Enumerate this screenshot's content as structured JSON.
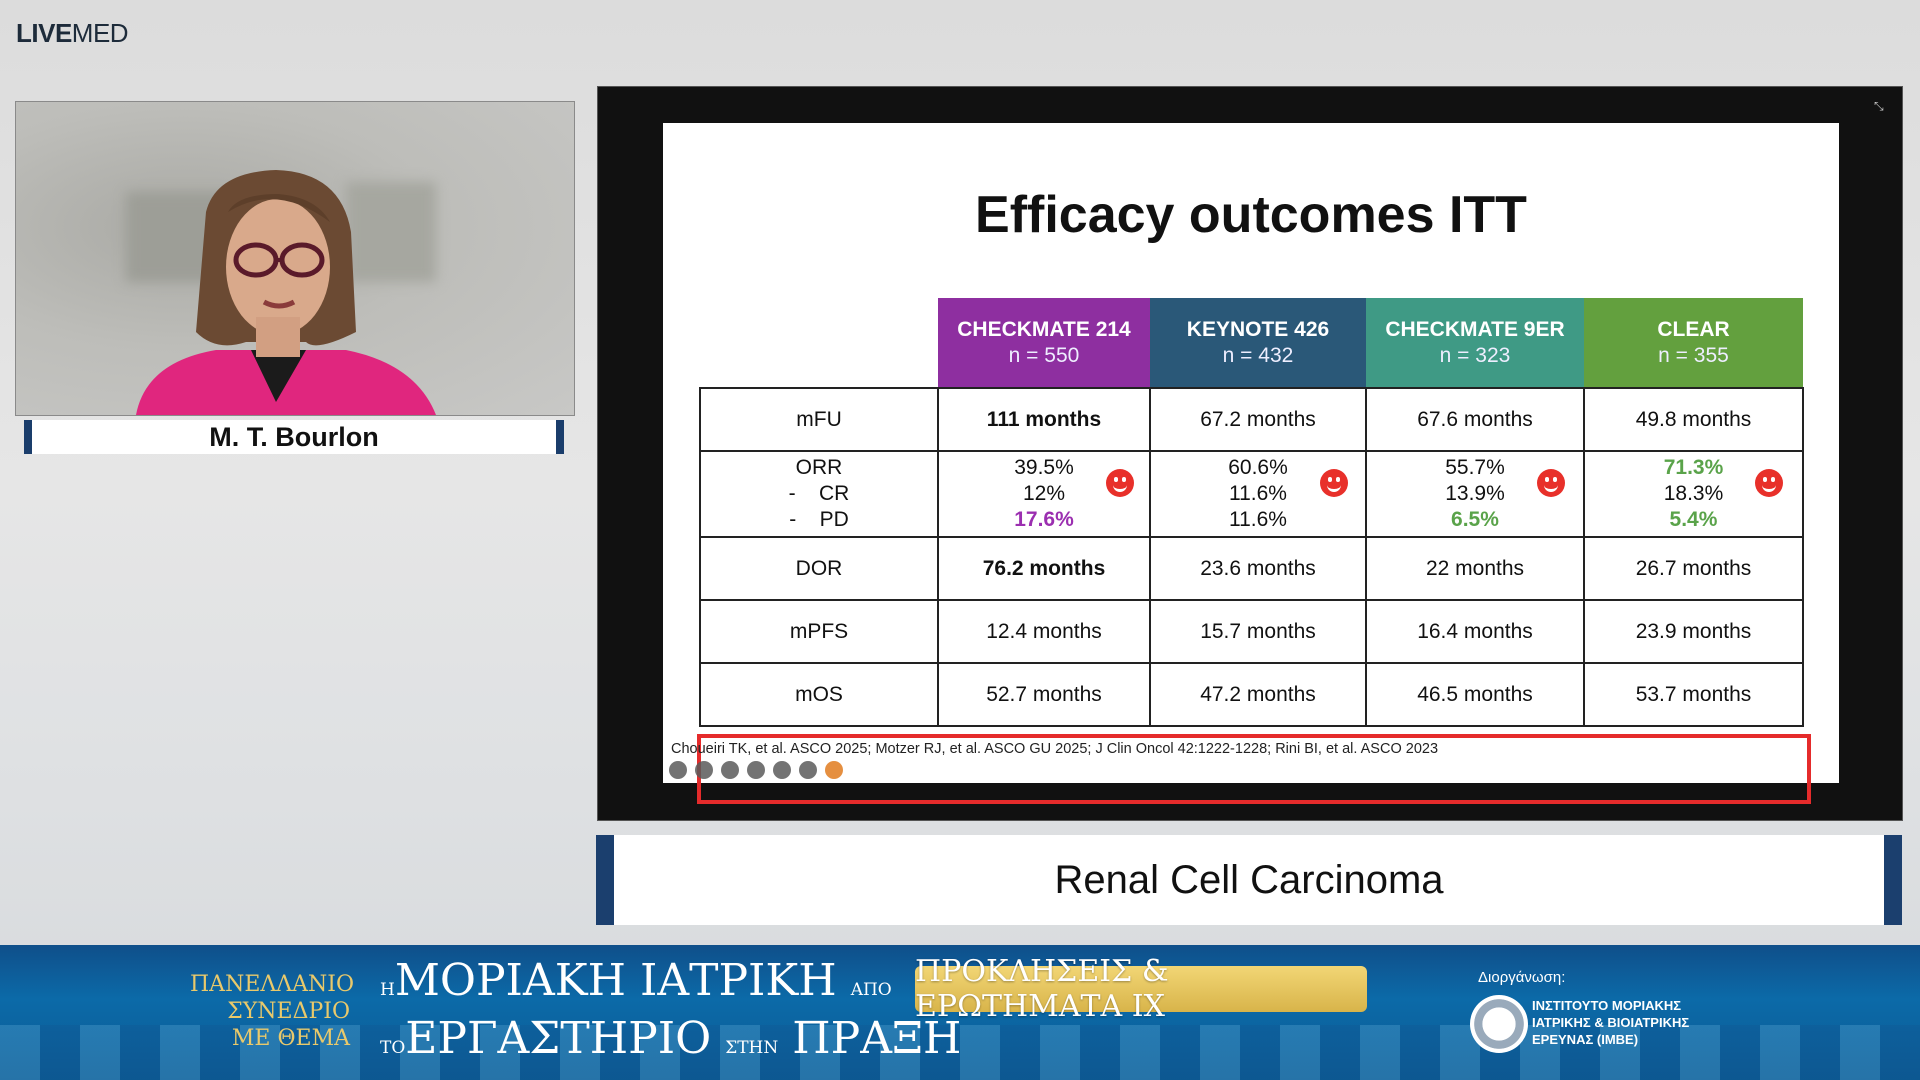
{
  "logo": {
    "bold": "LIVE",
    "regular": "MED"
  },
  "speaker": {
    "name": "M. T. Bourlon"
  },
  "slide": {
    "title": "Efficacy outcomes ITT",
    "columns": [
      {
        "trial": "CHECKMATE 214",
        "n": "n = 550",
        "color": "#8e2fa0"
      },
      {
        "trial": "KEYNOTE 426",
        "n": "n = 432",
        "color": "#2a5878"
      },
      {
        "trial": "CHECKMATE 9ER",
        "n": "n = 323",
        "color": "#3f9a85"
      },
      {
        "trial": "CLEAR",
        "n": "n = 355",
        "color": "#63a03e"
      }
    ],
    "rows": {
      "mfu": {
        "label": "mFU",
        "values": [
          "111 months",
          "67.2 months",
          "67.6 months",
          "49.8 months"
        ]
      },
      "orr": {
        "label": "ORR",
        "cr_label": "CR",
        "pd_label": "PD",
        "orr": [
          "39.5%",
          "60.6%",
          "55.7%",
          "71.3%"
        ],
        "cr": [
          "12%",
          "11.6%",
          "13.9%",
          "18.3%"
        ],
        "pd": [
          "17.6%",
          "11.6%",
          "6.5%",
          "5.4%"
        ]
      },
      "dor": {
        "label": "DOR",
        "values": [
          "76.2 months",
          "23.6 months",
          "22 months",
          "26.7 months"
        ]
      },
      "mpfs": {
        "label": "mPFS",
        "values": [
          "12.4 months",
          "15.7 months",
          "16.4 months",
          "23.9 months"
        ]
      },
      "mos": {
        "label": "mOS",
        "values": [
          "52.7 months",
          "47.2 months",
          "46.5 months",
          "53.7 months"
        ]
      }
    },
    "citation": "Choueiri TK, et al. ASCO 2025; Motzer RJ, et al. ASCO GU 2025; J Clin Oncol 42:1222-1228; Rini BI, et al. ASCO 2023"
  },
  "caption": "Renal Cell Carcinoma",
  "banner": {
    "left_lines": [
      "ΠΑΝΕΛΛΑΝΙΟ",
      "ΣΥΝΕΔΡΙΟ",
      "ΜΕ ΘΕΜΑ"
    ],
    "main_line1_pre": "Η",
    "main_line1": "ΜΟΡΙΑΚΗ ΙΑΤΡΙΚΗ",
    "main_line1_post": "ΑΠΟ",
    "main_line2_pre": "ΤΟ",
    "main_line2": "ΕΡΓΑΣΤΗΡΙΟ",
    "main_line2_mid": "ΣΤΗΝ",
    "main_line2_post": "ΠΡΑΞΗ",
    "chip": "ΠΡΟΚΛΗΣΕΙΣ & ΕΡΩΤΗΜΑΤΑ IX",
    "organizer_label": "Διοργάνωση:",
    "institute_lines": [
      "ΙΝΣΤΙΤΟΥΤΟ ΜΟΡΙΑΚΗΣ",
      "ΙΑΤΡΙΚΗΣ & ΒΙΟΙΑΤΡΙΚΗΣ",
      "ΕΡΕΥΝΑΣ (ΙΜΒΕ)"
    ]
  }
}
